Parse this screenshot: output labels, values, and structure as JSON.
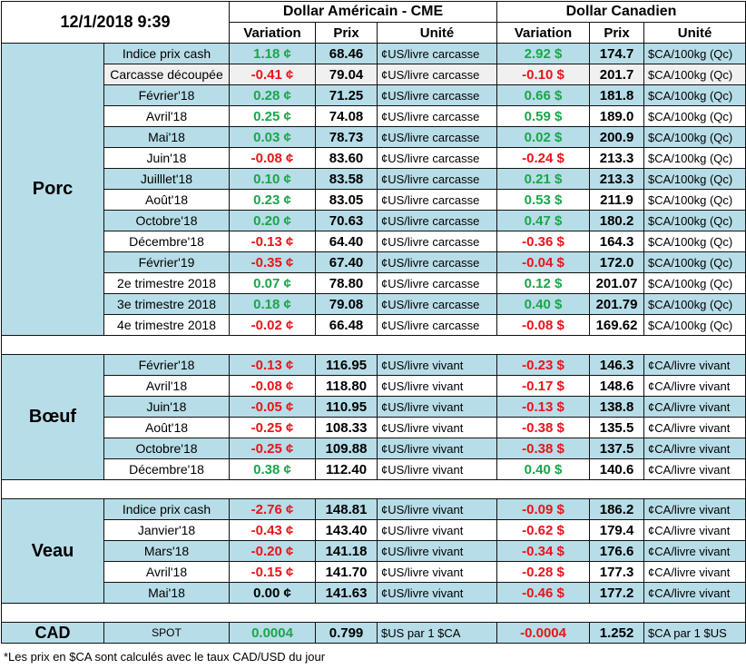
{
  "header": {
    "date": "12/1/2018 9:39",
    "usd_group": "Dollar Américain - CME",
    "cad_group": "Dollar Canadien",
    "col_variation": "Variation",
    "col_prix": "Prix",
    "col_unite": "Unité"
  },
  "porc": {
    "label": "Porc",
    "rows": [
      {
        "label": "Indice prix cash",
        "usd_var": "1.18 ¢",
        "usd_sign": "pos",
        "usd_prix": "68.46",
        "usd_unit": "¢US/livre carcasse",
        "cad_var": "2.92 $",
        "cad_sign": "pos",
        "cad_prix": "174.7",
        "cad_unit": "$CA/100kg (Qc)"
      },
      {
        "label": "Carcasse découpée",
        "usd_var": "-0.41 ¢",
        "usd_sign": "neg",
        "usd_prix": "79.04",
        "usd_unit": "¢US/livre carcasse",
        "cad_var": "-0.10 $",
        "cad_sign": "neg",
        "cad_prix": "201.7",
        "cad_unit": "$CA/100kg (Qc)"
      },
      {
        "label": "Février'18",
        "usd_var": "0.28 ¢",
        "usd_sign": "pos",
        "usd_prix": "71.25",
        "usd_unit": "¢US/livre carcasse",
        "cad_var": "0.66 $",
        "cad_sign": "pos",
        "cad_prix": "181.8",
        "cad_unit": "$CA/100kg (Qc)"
      },
      {
        "label": "Avril'18",
        "usd_var": "0.25 ¢",
        "usd_sign": "pos",
        "usd_prix": "74.08",
        "usd_unit": "¢US/livre carcasse",
        "cad_var": "0.59 $",
        "cad_sign": "pos",
        "cad_prix": "189.0",
        "cad_unit": "$CA/100kg (Qc)"
      },
      {
        "label": "Mai'18",
        "usd_var": "0.03 ¢",
        "usd_sign": "pos",
        "usd_prix": "78.73",
        "usd_unit": "¢US/livre carcasse",
        "cad_var": "0.02 $",
        "cad_sign": "pos",
        "cad_prix": "200.9",
        "cad_unit": "$CA/100kg (Qc)"
      },
      {
        "label": "Juin'18",
        "usd_var": "-0.08 ¢",
        "usd_sign": "neg",
        "usd_prix": "83.60",
        "usd_unit": "¢US/livre carcasse",
        "cad_var": "-0.24 $",
        "cad_sign": "neg",
        "cad_prix": "213.3",
        "cad_unit": "$CA/100kg (Qc)"
      },
      {
        "label": "Juilllet'18",
        "usd_var": "0.10 ¢",
        "usd_sign": "pos",
        "usd_prix": "83.58",
        "usd_unit": "¢US/livre carcasse",
        "cad_var": "0.21 $",
        "cad_sign": "pos",
        "cad_prix": "213.3",
        "cad_unit": "$CA/100kg (Qc)"
      },
      {
        "label": "Août'18",
        "usd_var": "0.23 ¢",
        "usd_sign": "pos",
        "usd_prix": "83.05",
        "usd_unit": "¢US/livre carcasse",
        "cad_var": "0.53 $",
        "cad_sign": "pos",
        "cad_prix": "211.9",
        "cad_unit": "$CA/100kg (Qc)"
      },
      {
        "label": "Octobre'18",
        "usd_var": "0.20 ¢",
        "usd_sign": "pos",
        "usd_prix": "70.63",
        "usd_unit": "¢US/livre carcasse",
        "cad_var": "0.47 $",
        "cad_sign": "pos",
        "cad_prix": "180.2",
        "cad_unit": "$CA/100kg (Qc)"
      },
      {
        "label": "Décembre'18",
        "usd_var": "-0.13 ¢",
        "usd_sign": "neg",
        "usd_prix": "64.40",
        "usd_unit": "¢US/livre carcasse",
        "cad_var": "-0.36 $",
        "cad_sign": "neg",
        "cad_prix": "164.3",
        "cad_unit": "$CA/100kg (Qc)"
      },
      {
        "label": "Février'19",
        "usd_var": "-0.35 ¢",
        "usd_sign": "neg",
        "usd_prix": "67.40",
        "usd_unit": "¢US/livre carcasse",
        "cad_var": "-0.04 $",
        "cad_sign": "neg",
        "cad_prix": "172.0",
        "cad_unit": "$CA/100kg (Qc)"
      },
      {
        "label": "2e trimestre 2018",
        "usd_var": "0.07 ¢",
        "usd_sign": "pos",
        "usd_prix": "78.80",
        "usd_unit": "¢US/livre carcasse",
        "cad_var": "0.12 $",
        "cad_sign": "pos",
        "cad_prix": "201.07",
        "cad_unit": "$CA/100kg (Qc)"
      },
      {
        "label": "3e trimestre 2018",
        "usd_var": "0.18 ¢",
        "usd_sign": "pos",
        "usd_prix": "79.08",
        "usd_unit": "¢US/livre carcasse",
        "cad_var": "0.40 $",
        "cad_sign": "pos",
        "cad_prix": "201.79",
        "cad_unit": "$CA/100kg (Qc)"
      },
      {
        "label": "4e trimestre 2018",
        "usd_var": "-0.02 ¢",
        "usd_sign": "neg",
        "usd_prix": "66.48",
        "usd_unit": "¢US/livre carcasse",
        "cad_var": "-0.08 $",
        "cad_sign": "neg",
        "cad_prix": "169.62",
        "cad_unit": "$CA/100kg (Qc)"
      }
    ]
  },
  "boeuf": {
    "label": "Bœuf",
    "rows": [
      {
        "label": "Février'18",
        "usd_var": "-0.13 ¢",
        "usd_sign": "neg",
        "usd_prix": "116.95",
        "usd_unit": "¢US/livre vivant",
        "cad_var": "-0.23 $",
        "cad_sign": "neg",
        "cad_prix": "146.3",
        "cad_unit": "¢CA/livre vivant"
      },
      {
        "label": "Avril'18",
        "usd_var": "-0.08 ¢",
        "usd_sign": "neg",
        "usd_prix": "118.80",
        "usd_unit": "¢US/livre vivant",
        "cad_var": "-0.17 $",
        "cad_sign": "neg",
        "cad_prix": "148.6",
        "cad_unit": "¢CA/livre vivant"
      },
      {
        "label": "Juin'18",
        "usd_var": "-0.05 ¢",
        "usd_sign": "neg",
        "usd_prix": "110.95",
        "usd_unit": "¢US/livre vivant",
        "cad_var": "-0.13 $",
        "cad_sign": "neg",
        "cad_prix": "138.8",
        "cad_unit": "¢CA/livre vivant"
      },
      {
        "label": "Août'18",
        "usd_var": "-0.25 ¢",
        "usd_sign": "neg",
        "usd_prix": "108.33",
        "usd_unit": "¢US/livre vivant",
        "cad_var": "-0.38 $",
        "cad_sign": "neg",
        "cad_prix": "135.5",
        "cad_unit": "¢CA/livre vivant"
      },
      {
        "label": "Octobre'18",
        "usd_var": "-0.25 ¢",
        "usd_sign": "neg",
        "usd_prix": "109.88",
        "usd_unit": "¢US/livre vivant",
        "cad_var": "-0.38 $",
        "cad_sign": "neg",
        "cad_prix": "137.5",
        "cad_unit": "¢CA/livre vivant"
      },
      {
        "label": "Décembre'18",
        "usd_var": "0.38 ¢",
        "usd_sign": "pos",
        "usd_prix": "112.40",
        "usd_unit": "¢US/livre vivant",
        "cad_var": "0.40 $",
        "cad_sign": "pos",
        "cad_prix": "140.6",
        "cad_unit": "¢CA/livre vivant"
      }
    ]
  },
  "veau": {
    "label": "Veau",
    "rows": [
      {
        "label": "Indice prix cash",
        "usd_var": "-2.76 ¢",
        "usd_sign": "neg",
        "usd_prix": "148.81",
        "usd_unit": "¢US/livre vivant",
        "cad_var": "-0.09 $",
        "cad_sign": "neg",
        "cad_prix": "186.2",
        "cad_unit": "¢CA/livre vivant"
      },
      {
        "label": "Janvier'18",
        "usd_var": "-0.43 ¢",
        "usd_sign": "neg",
        "usd_prix": "143.40",
        "usd_unit": "¢US/livre vivant",
        "cad_var": "-0.62 $",
        "cad_sign": "neg",
        "cad_prix": "179.4",
        "cad_unit": "¢CA/livre vivant"
      },
      {
        "label": "Mars'18",
        "usd_var": "-0.20 ¢",
        "usd_sign": "neg",
        "usd_prix": "141.18",
        "usd_unit": "¢US/livre vivant",
        "cad_var": "-0.34 $",
        "cad_sign": "neg",
        "cad_prix": "176.6",
        "cad_unit": "¢CA/livre vivant"
      },
      {
        "label": "Avril'18",
        "usd_var": "-0.15 ¢",
        "usd_sign": "neg",
        "usd_prix": "141.70",
        "usd_unit": "¢US/livre vivant",
        "cad_var": "-0.28 $",
        "cad_sign": "neg",
        "cad_prix": "177.3",
        "cad_unit": "¢CA/livre vivant"
      },
      {
        "label": "Mai'18",
        "usd_var": "0.00 ¢",
        "usd_sign": "zero",
        "usd_prix": "141.63",
        "usd_unit": "¢US/livre vivant",
        "cad_var": "-0.46 $",
        "cad_sign": "neg",
        "cad_prix": "177.2",
        "cad_unit": "¢CA/livre vivant"
      }
    ]
  },
  "cad": {
    "label": "CAD",
    "spot": "SPOT",
    "usd_var": "0.0004",
    "usd_sign": "pos",
    "usd_prix": "0.799",
    "usd_unit": "$US par 1 $CA",
    "cad_var": "-0.0004",
    "cad_sign": "neg",
    "cad_prix": "1.252",
    "cad_unit": "$CA par 1 $US"
  },
  "footnote": "*Les  prix en $CA sont calculés avec le taux CAD/USD du jour"
}
